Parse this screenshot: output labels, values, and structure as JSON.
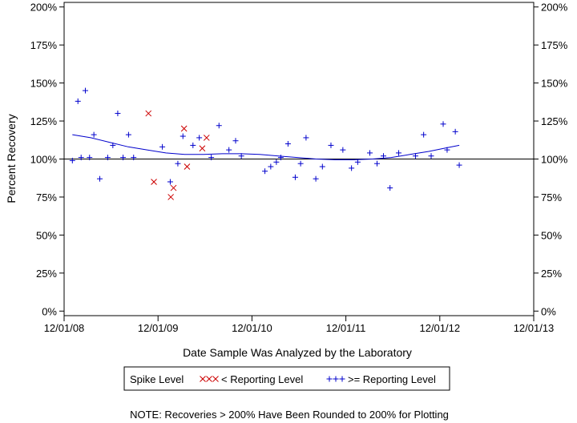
{
  "chart_data": {
    "type": "scatter",
    "title": "",
    "xlabel": "Date Sample Was Analyzed by the Laboratory",
    "ylabel": "Percent Recovery",
    "x_ticks": [
      "12/01/08",
      "12/01/09",
      "12/01/10",
      "12/01/11",
      "12/01/12",
      "12/01/13"
    ],
    "x_tick_years": [
      2008.917,
      2009.917,
      2010.917,
      2011.917,
      2012.917,
      2013.917
    ],
    "xlim": [
      2008.917,
      2013.917
    ],
    "y_ticks": [
      "0%",
      "25%",
      "50%",
      "75%",
      "100%",
      "125%",
      "150%",
      "175%",
      "200%"
    ],
    "y_tick_values": [
      0,
      25,
      50,
      75,
      100,
      125,
      150,
      175,
      200
    ],
    "ylim": [
      -3,
      203
    ],
    "reference_line": 100,
    "grid": false,
    "legend": {
      "title": "Spike Level",
      "entries": [
        "< Reporting Level",
        ">= Reporting Level"
      ]
    },
    "note": "NOTE: Recoveries > 200% Have Been Rounded to 200% for Plotting",
    "series": [
      {
        "name": "< Reporting Level",
        "marker": "x",
        "color": "#cc0000",
        "points": [
          [
            2009.815,
            130
          ],
          [
            2009.873,
            85
          ],
          [
            2010.053,
            75
          ],
          [
            2010.082,
            81
          ],
          [
            2010.194,
            120
          ],
          [
            2010.226,
            95
          ],
          [
            2010.388,
            107
          ],
          [
            2010.434,
            114
          ]
        ]
      },
      {
        "name": ">= Reporting Level",
        "marker": "+",
        "color": "#0000cc",
        "points": [
          [
            2009.005,
            99
          ],
          [
            2009.064,
            138
          ],
          [
            2009.098,
            101
          ],
          [
            2009.143,
            145
          ],
          [
            2009.188,
            101
          ],
          [
            2009.234,
            116
          ],
          [
            2009.297,
            87
          ],
          [
            2009.381,
            101
          ],
          [
            2009.436,
            109
          ],
          [
            2009.488,
            130
          ],
          [
            2009.545,
            101
          ],
          [
            2009.603,
            116
          ],
          [
            2009.657,
            101
          ],
          [
            2009.963,
            108
          ],
          [
            2010.047,
            85
          ],
          [
            2010.128,
            97
          ],
          [
            2010.182,
            115
          ],
          [
            2010.289,
            109
          ],
          [
            2010.356,
            114
          ],
          [
            2010.484,
            101
          ],
          [
            2010.566,
            122
          ],
          [
            2010.672,
            106
          ],
          [
            2010.743,
            112
          ],
          [
            2010.804,
            102
          ],
          [
            2011.055,
            92
          ],
          [
            2011.117,
            95
          ],
          [
            2011.177,
            98
          ],
          [
            2011.224,
            101
          ],
          [
            2011.301,
            110
          ],
          [
            2011.378,
            88
          ],
          [
            2011.435,
            97
          ],
          [
            2011.493,
            114
          ],
          [
            2011.597,
            87
          ],
          [
            2011.667,
            95
          ],
          [
            2011.758,
            109
          ],
          [
            2011.885,
            106
          ],
          [
            2011.977,
            94
          ],
          [
            2012.043,
            98
          ],
          [
            2012.172,
            104
          ],
          [
            2012.249,
            97
          ],
          [
            2012.317,
            102
          ],
          [
            2012.387,
            81
          ],
          [
            2012.479,
            104
          ],
          [
            2012.658,
            102
          ],
          [
            2012.745,
            116
          ],
          [
            2012.825,
            102
          ],
          [
            2012.953,
            123
          ],
          [
            2012.995,
            106
          ],
          [
            2013.082,
            118
          ],
          [
            2013.124,
            96
          ]
        ]
      },
      {
        "name": "",
        "type": "line",
        "color": "#0000cc",
        "points": [
          [
            2009.005,
            116
          ],
          [
            2009.2,
            114
          ],
          [
            2009.4,
            111
          ],
          [
            2009.6,
            108
          ],
          [
            2009.8,
            106
          ],
          [
            2010.0,
            104
          ],
          [
            2010.2,
            103
          ],
          [
            2010.4,
            103
          ],
          [
            2010.6,
            103.5
          ],
          [
            2010.8,
            103.5
          ],
          [
            2011.0,
            103
          ],
          [
            2011.2,
            102
          ],
          [
            2011.4,
            101
          ],
          [
            2011.6,
            100
          ],
          [
            2011.8,
            99.5
          ],
          [
            2012.0,
            99.5
          ],
          [
            2012.2,
            100
          ],
          [
            2012.4,
            101
          ],
          [
            2012.6,
            103
          ],
          [
            2012.8,
            105
          ],
          [
            2013.0,
            107.5
          ],
          [
            2013.124,
            109
          ]
        ]
      }
    ]
  }
}
